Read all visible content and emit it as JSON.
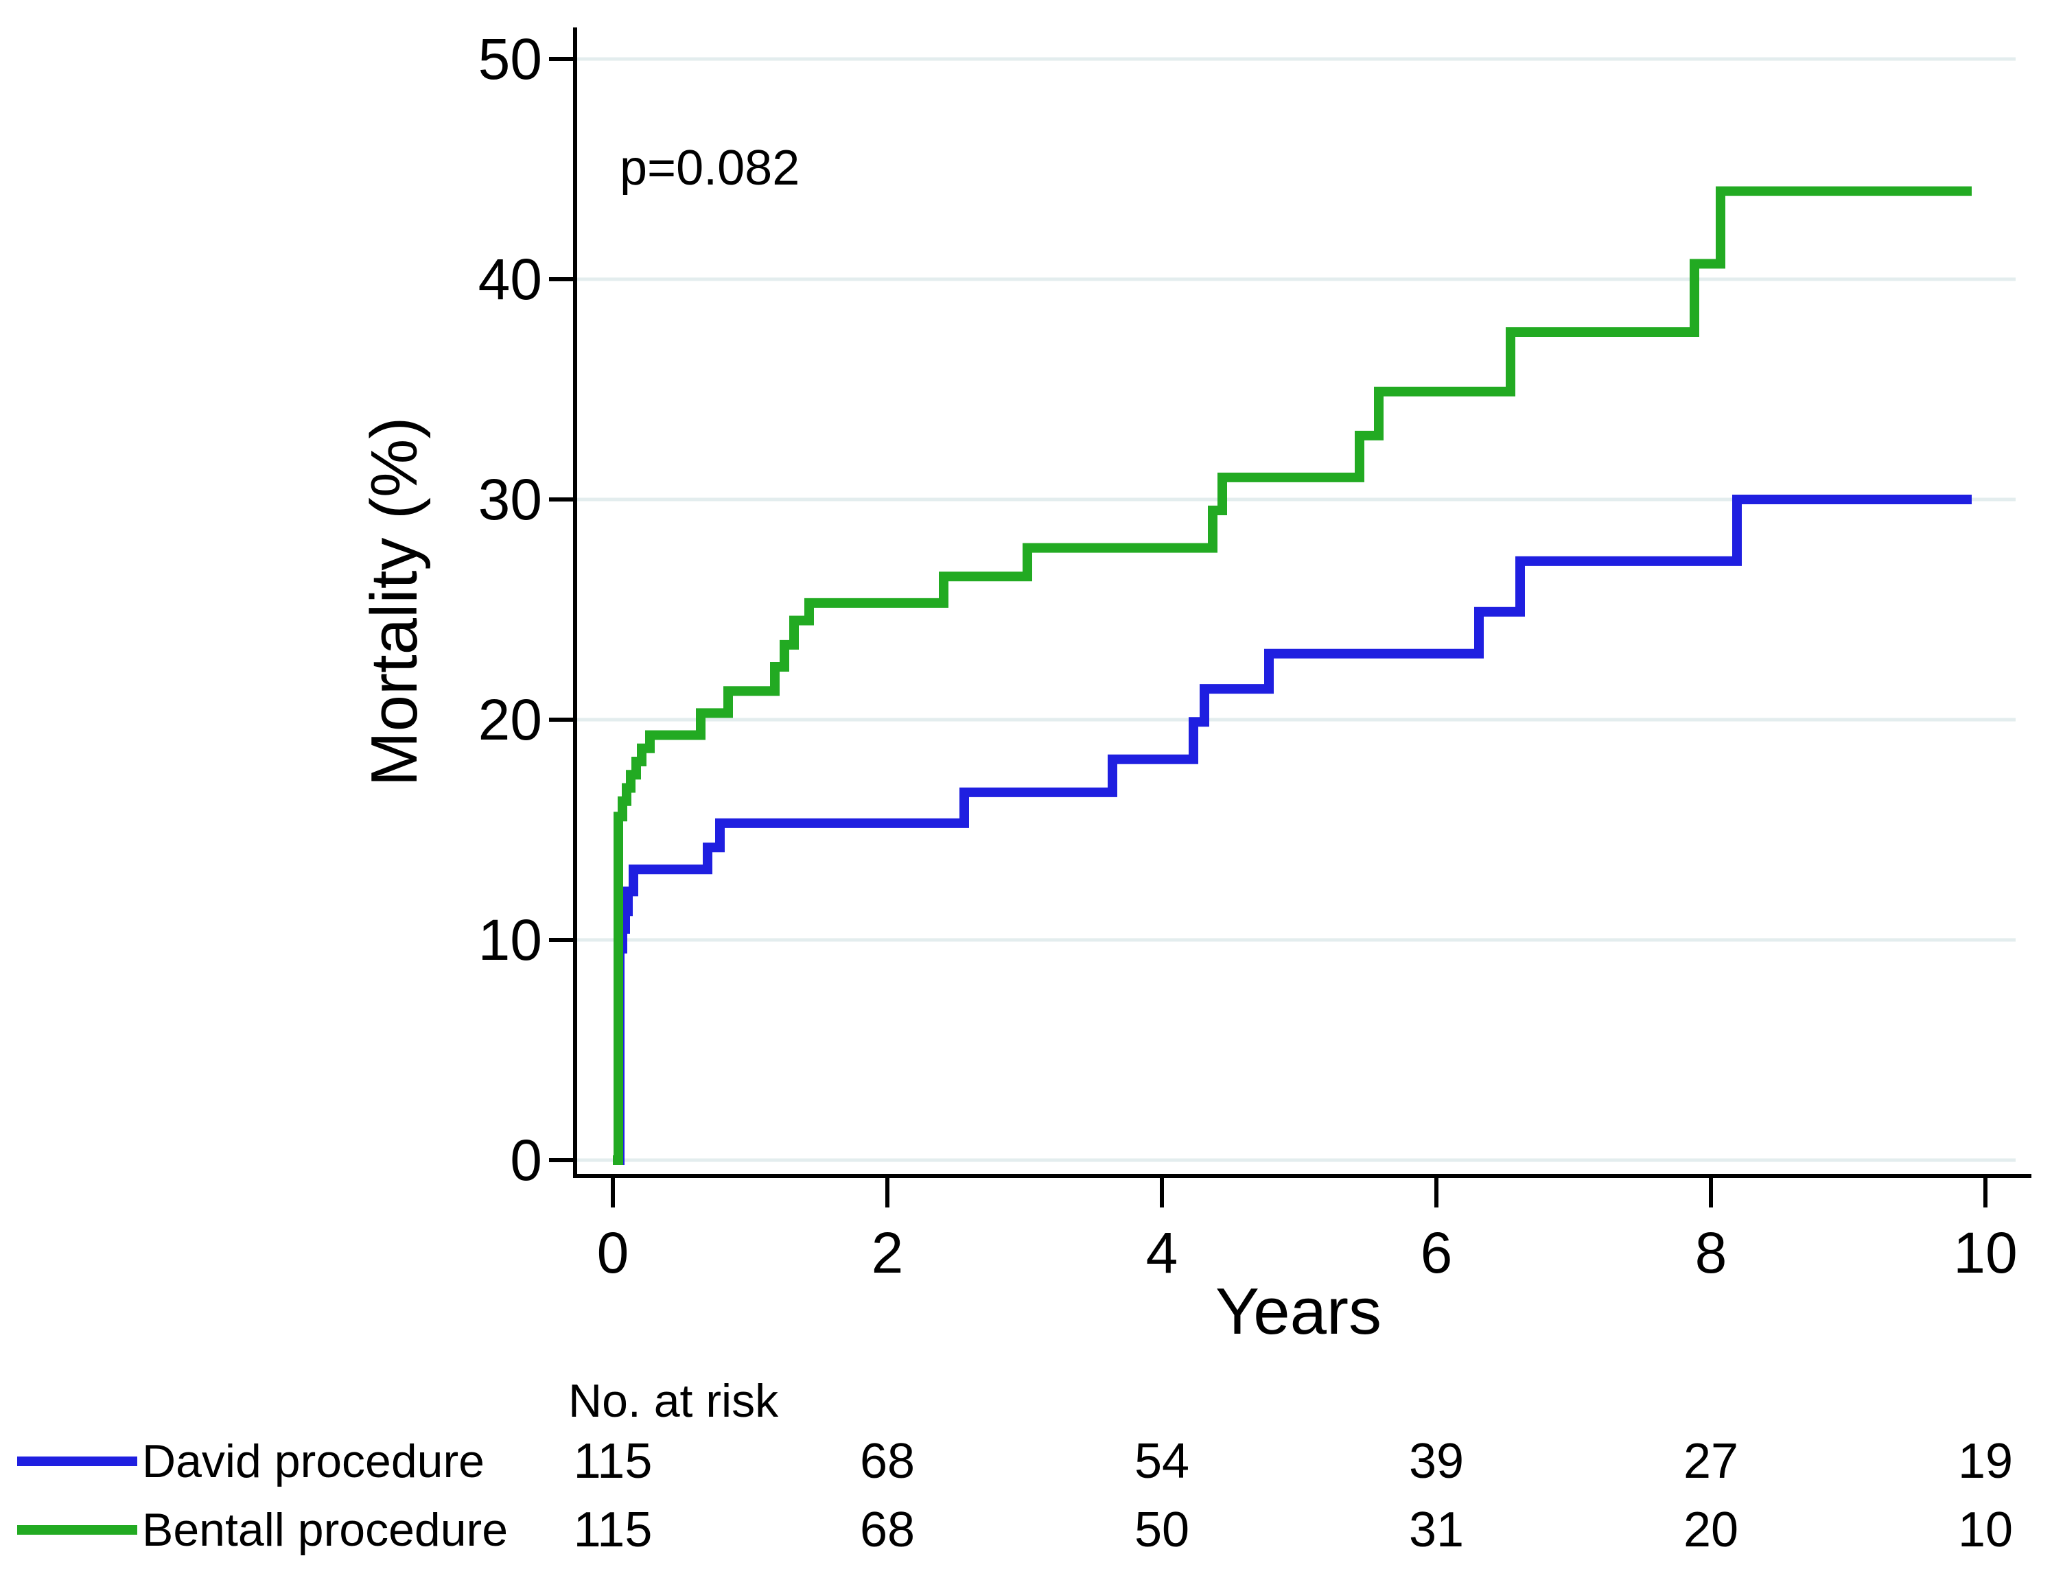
{
  "figure": {
    "p_value": "p=0.082",
    "risk_header": "No. at risk"
  },
  "colors": {
    "david": "#1f1fe0",
    "bentall": "#22aa22",
    "gridline": "#e3edee",
    "axis": "#000000",
    "text": "#000000"
  },
  "chart_data": {
    "type": "line",
    "subtype": "kaplan-meier-cumulative-step",
    "title": "",
    "annotation": "p=0.082",
    "xlabel": "Years",
    "ylabel": "Mortality (%)",
    "xlim": [
      0,
      10
    ],
    "ylim": [
      0,
      50
    ],
    "x_ticks": [
      0,
      2,
      4,
      6,
      8,
      10
    ],
    "y_ticks": [
      0,
      10,
      20,
      30,
      40,
      50
    ],
    "grid": "horizontal-only",
    "legend_position": "bottom-left",
    "curve_end_time": 9.9,
    "series": [
      {
        "name": "David procedure",
        "color_key": "david",
        "steps": [
          [
            0.02,
            0
          ],
          [
            0.05,
            9.6
          ],
          [
            0.07,
            10.5
          ],
          [
            0.09,
            11.3
          ],
          [
            0.11,
            12.2
          ],
          [
            0.15,
            13.2
          ],
          [
            0.69,
            14.2
          ],
          [
            0.78,
            15.3
          ],
          [
            2.56,
            16.7
          ],
          [
            3.64,
            18.2
          ],
          [
            4.23,
            19.9
          ],
          [
            4.31,
            21.4
          ],
          [
            4.78,
            23.0
          ],
          [
            6.31,
            24.9
          ],
          [
            6.61,
            27.2
          ],
          [
            8.19,
            30.0
          ]
        ]
      },
      {
        "name": "Bentall procedure",
        "color_key": "bentall",
        "steps": [
          [
            0.0,
            0
          ],
          [
            0.04,
            15.6
          ],
          [
            0.07,
            16.3
          ],
          [
            0.1,
            16.9
          ],
          [
            0.13,
            17.5
          ],
          [
            0.17,
            18.1
          ],
          [
            0.21,
            18.7
          ],
          [
            0.27,
            19.3
          ],
          [
            0.64,
            20.3
          ],
          [
            0.84,
            21.3
          ],
          [
            1.18,
            22.4
          ],
          [
            1.25,
            23.4
          ],
          [
            1.32,
            24.5
          ],
          [
            1.43,
            25.3
          ],
          [
            2.41,
            26.5
          ],
          [
            3.02,
            27.8
          ],
          [
            4.37,
            29.5
          ],
          [
            4.44,
            31.0
          ],
          [
            5.44,
            32.9
          ],
          [
            5.58,
            34.9
          ],
          [
            6.54,
            37.6
          ],
          [
            7.88,
            40.7
          ],
          [
            8.07,
            44.0
          ]
        ]
      }
    ],
    "risk_table": {
      "header": "No. at risk",
      "times": [
        0,
        2,
        4,
        6,
        8,
        10
      ],
      "rows": [
        {
          "name": "David procedure",
          "values": [
            "115",
            "68",
            "54",
            "39",
            "27",
            "19"
          ]
        },
        {
          "name": "Bentall procedure",
          "values": [
            "115",
            "68",
            "50",
            "31",
            "20",
            "10"
          ]
        }
      ]
    }
  }
}
